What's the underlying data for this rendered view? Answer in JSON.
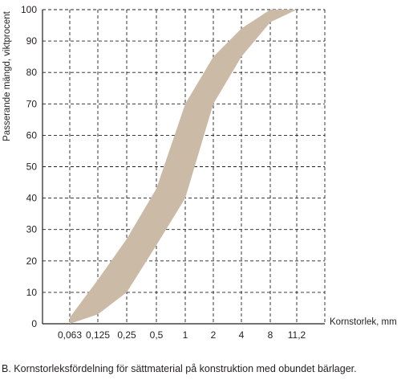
{
  "chart_data": {
    "type": "area",
    "title": "",
    "xlabel": "Kornstorlek, mm",
    "ylabel": "Passerande mängd, viktprocent",
    "x_ticks": [
      "0,063",
      "0,125",
      "0,25",
      "0,5",
      "1",
      "2",
      "4",
      "8",
      "11,2"
    ],
    "y_ticks": [
      0,
      10,
      20,
      30,
      40,
      50,
      60,
      70,
      80,
      90,
      100
    ],
    "ylim": [
      0,
      100
    ],
    "grid": true,
    "band_color": "#cbbba6",
    "series": [
      {
        "role": "upper",
        "x": [
          "0,063",
          "0,125",
          "0,25",
          "0,5",
          "1",
          "2",
          "4",
          "8",
          "11,2"
        ],
        "values": [
          2,
          14,
          27,
          43,
          70,
          85,
          94,
          100,
          100
        ]
      },
      {
        "role": "lower",
        "x": [
          "0,063",
          "0,125",
          "0,25",
          "0,5",
          "1",
          "2",
          "4",
          "8",
          "11,2"
        ],
        "values": [
          0,
          3,
          10,
          25,
          40,
          70,
          85,
          96,
          100
        ]
      }
    ]
  },
  "caption": "B. Kornstorleksfördelning för sättmaterial på konstruktion med obundet bärlager."
}
